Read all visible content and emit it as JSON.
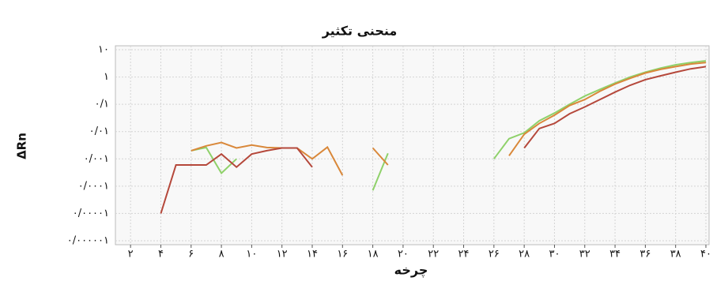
{
  "chart_data": {
    "type": "line",
    "title": "منحنی تکثیر",
    "y_label": "ΔRn",
    "x_label": "چرخه",
    "ylog": true,
    "grid": true,
    "xlim": [
      1,
      40
    ],
    "ylim": [
      1e-06,
      10
    ],
    "xticks": [
      {
        "value": 2,
        "label": "۲"
      },
      {
        "value": 4,
        "label": "۴"
      },
      {
        "value": 6,
        "label": "۶"
      },
      {
        "value": 8,
        "label": "۸"
      },
      {
        "value": 10,
        "label": "۱۰"
      },
      {
        "value": 12,
        "label": "۱۲"
      },
      {
        "value": 14,
        "label": "۱۴"
      },
      {
        "value": 16,
        "label": "۱۶"
      },
      {
        "value": 18,
        "label": "۱۸"
      },
      {
        "value": 20,
        "label": "۲۰"
      },
      {
        "value": 22,
        "label": "۲۲"
      },
      {
        "value": 24,
        "label": "۲۴"
      },
      {
        "value": 26,
        "label": "۲۶"
      },
      {
        "value": 28,
        "label": "۲۸"
      },
      {
        "value": 30,
        "label": "۳۰"
      },
      {
        "value": 32,
        "label": "۳۲"
      },
      {
        "value": 34,
        "label": "۳۴"
      },
      {
        "value": 36,
        "label": "۳۶"
      },
      {
        "value": 38,
        "label": "۳۸"
      },
      {
        "value": 40,
        "label": "۴۰"
      }
    ],
    "yticks": [
      {
        "value": 10,
        "label": "۱۰"
      },
      {
        "value": 1,
        "label": "۱"
      },
      {
        "value": 0.1,
        "label": "۰/۱"
      },
      {
        "value": 0.01,
        "label": "۰/۰۱"
      },
      {
        "value": 0.001,
        "label": "۰/۰۰۱"
      },
      {
        "value": 0.0001,
        "label": "۰/۰۰۰۱"
      },
      {
        "value": 1e-05,
        "label": "۰/۰۰۰۰۱"
      },
      {
        "value": 1e-06,
        "label": "۰/۰۰۰۰۰۱"
      }
    ],
    "x": [
      4,
      5,
      6,
      7,
      8,
      9,
      10,
      11,
      12,
      13,
      14,
      15,
      16,
      17,
      18,
      19,
      20,
      21,
      22,
      23,
      24,
      25,
      26,
      27,
      28,
      29,
      30,
      31,
      32,
      33,
      34,
      35,
      36,
      37,
      38,
      39,
      40
    ],
    "series": [
      {
        "color": "#8fd16a",
        "values": [
          null,
          null,
          0.002,
          0.0026,
          0.0003,
          0.001,
          null,
          null,
          null,
          null,
          null,
          null,
          null,
          null,
          7e-05,
          0.0016,
          null,
          null,
          null,
          null,
          null,
          null,
          0.001,
          0.0055,
          0.009,
          0.025,
          0.048,
          0.1,
          0.2,
          0.35,
          0.6,
          1,
          1.5,
          2.1,
          2.8,
          3.4,
          3.9
        ]
      },
      {
        "color": "#d9883a",
        "values": [
          null,
          null,
          0.002,
          0.003,
          0.004,
          0.0025,
          0.0032,
          0.0026,
          0.0025,
          0.0025,
          0.001,
          0.0027,
          0.00025,
          null,
          0.0025,
          0.0006,
          null,
          null,
          null,
          null,
          null,
          null,
          null,
          0.0013,
          0.008,
          0.02,
          0.04,
          0.09,
          0.15,
          0.3,
          0.55,
          0.9,
          1.4,
          1.9,
          2.4,
          3,
          3.4
        ]
      },
      {
        "color": "#b5483b",
        "values": [
          1e-05,
          0.0006,
          0.0006,
          0.0006,
          0.0015,
          0.0005,
          0.0015,
          0.002,
          0.0025,
          0.0025,
          0.0005,
          null,
          null,
          null,
          null,
          null,
          null,
          null,
          null,
          null,
          null,
          null,
          null,
          null,
          0.0025,
          0.013,
          0.02,
          0.045,
          0.08,
          0.15,
          0.28,
          0.5,
          0.8,
          1.1,
          1.5,
          2,
          2.4
        ]
      }
    ]
  }
}
